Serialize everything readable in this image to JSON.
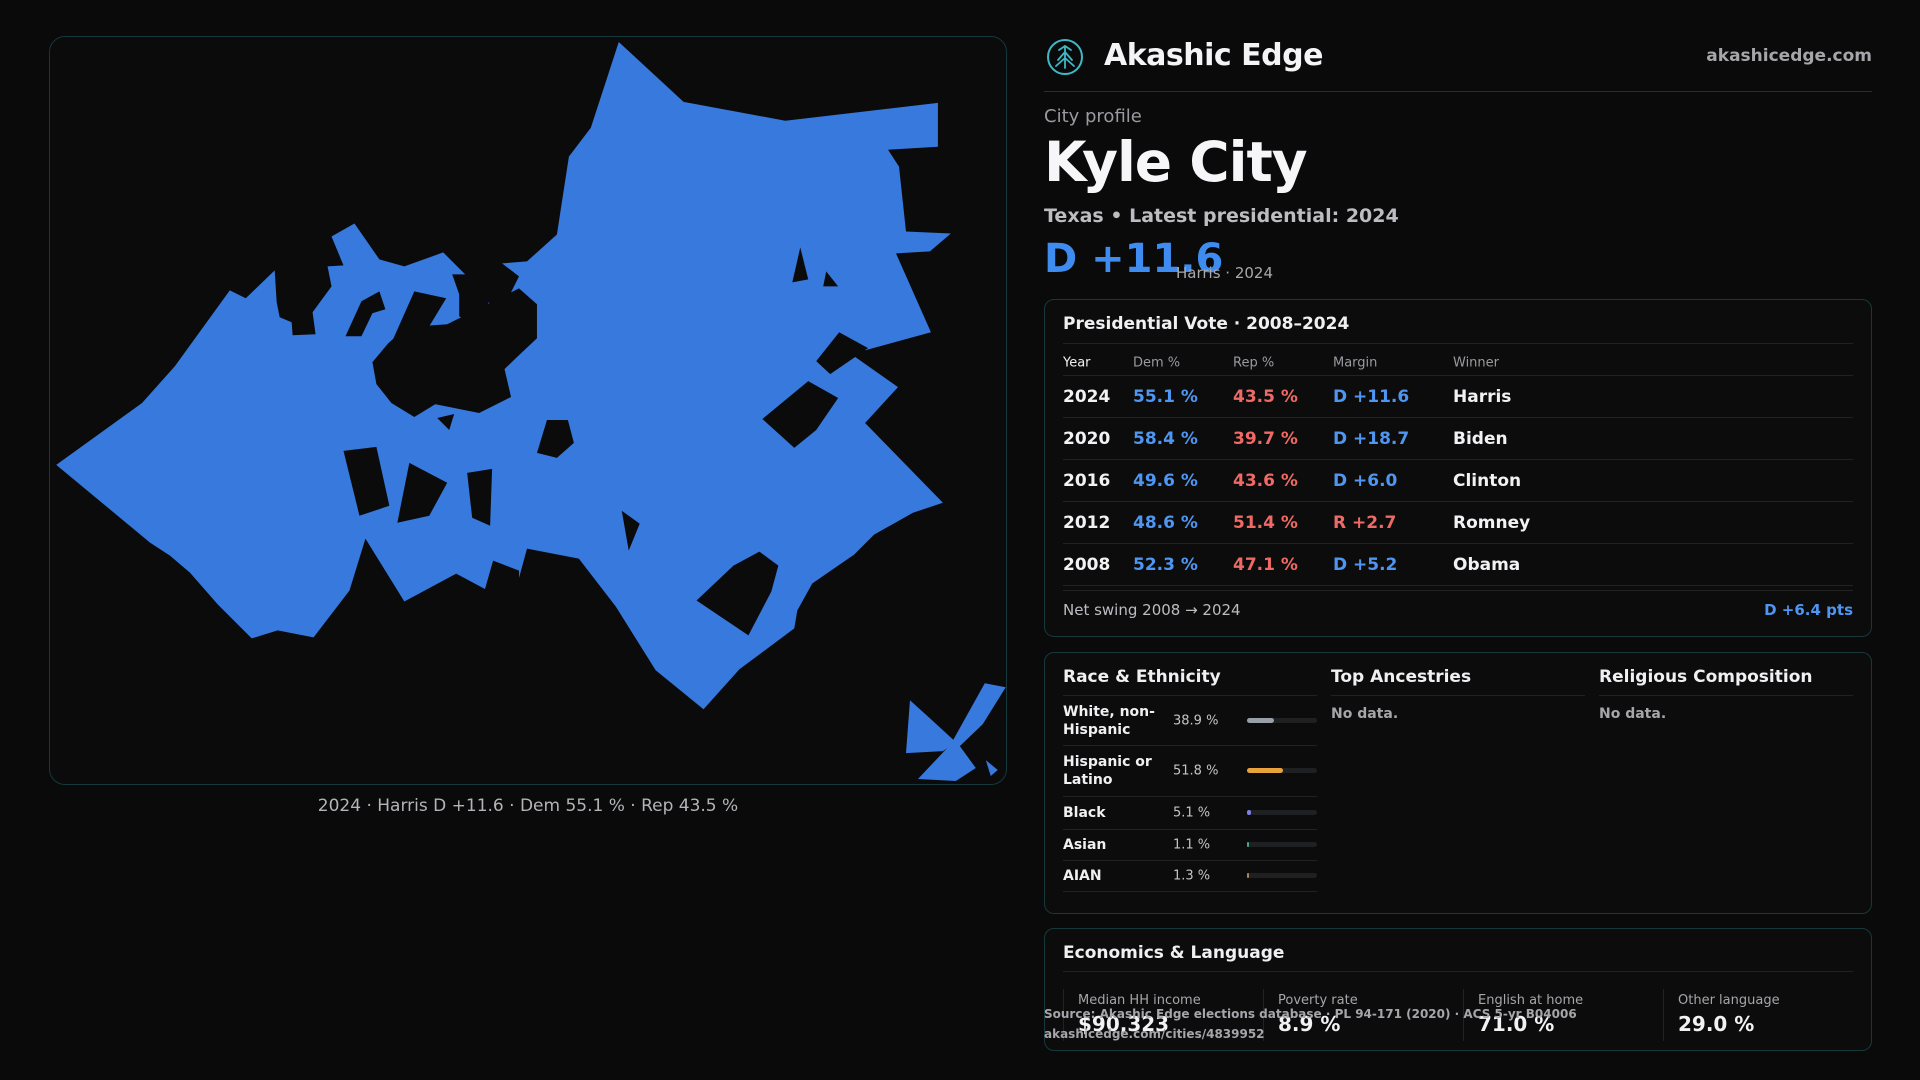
{
  "brand": {
    "name": "Akashic Edge",
    "url": "akashicedge.com",
    "logo_icon": "tree-logo-icon"
  },
  "profile": {
    "kicker": "City profile",
    "city": "Kyle City",
    "subline": "Texas • Latest presidential: 2024",
    "margin": "D +11.6",
    "margin_sub": "Harris · 2024"
  },
  "map": {
    "caption": "2024 · Harris D +11.6 · Dem 55.1 % · Rep 43.5 %",
    "fill_color": "#3879de"
  },
  "vote": {
    "title": "Presidential Vote · 2008–2024",
    "headers": {
      "year": "Year",
      "dem": "Dem %",
      "rep": "Rep %",
      "margin": "Margin",
      "winner": "Winner"
    },
    "rows": [
      {
        "year": "2024",
        "dem": "55.1 %",
        "rep": "43.5 %",
        "margin": "D +11.6",
        "party": "dem",
        "winner": "Harris"
      },
      {
        "year": "2020",
        "dem": "58.4 %",
        "rep": "39.7 %",
        "margin": "D +18.7",
        "party": "dem",
        "winner": "Biden"
      },
      {
        "year": "2016",
        "dem": "49.6 %",
        "rep": "43.6 %",
        "margin": "D +6.0",
        "party": "dem",
        "winner": "Clinton"
      },
      {
        "year": "2012",
        "dem": "48.6 %",
        "rep": "51.4 %",
        "margin": "R +2.7",
        "party": "rep",
        "winner": "Romney"
      },
      {
        "year": "2008",
        "dem": "52.3 %",
        "rep": "47.1 %",
        "margin": "D +5.2",
        "party": "dem",
        "winner": "Obama"
      }
    ],
    "swing_label": "Net swing 2008 → 2024",
    "swing_value": "D +6.4 pts"
  },
  "race": {
    "title": "Race & Ethnicity",
    "rows": [
      {
        "label": "White, non-Hispanic",
        "pct": "38.9 %",
        "value": 38.9,
        "color": "#9aa0a8"
      },
      {
        "label": "Hispanic or Latino",
        "pct": "51.8 %",
        "value": 51.8,
        "color": "#e8a33a"
      },
      {
        "label": "Black",
        "pct": "5.1 %",
        "value": 5.1,
        "color": "#7d7ee8"
      },
      {
        "label": "Asian",
        "pct": "1.1 %",
        "value": 1.1,
        "color": "#4aa888"
      },
      {
        "label": "AIAN",
        "pct": "1.3 %",
        "value": 1.3,
        "color": "#a88a5a"
      }
    ]
  },
  "ancestries": {
    "title": "Top Ancestries",
    "empty": "No data."
  },
  "religion": {
    "title": "Religious Composition",
    "empty": "No data."
  },
  "economics": {
    "title": "Economics & Language",
    "stats": [
      {
        "label": "Median HH income",
        "value": "$90,323"
      },
      {
        "label": "Poverty rate",
        "value": "8.9 %"
      },
      {
        "label": "English at home",
        "value": "71.0 %"
      },
      {
        "label": "Other language",
        "value": "29.0 %"
      }
    ]
  },
  "source": {
    "line1": "Source: Akashic Edge elections database · PL 94-171 (2020) · ACS 5-yr B04006",
    "line2": "akashicedge.com/cities/4839952"
  }
}
